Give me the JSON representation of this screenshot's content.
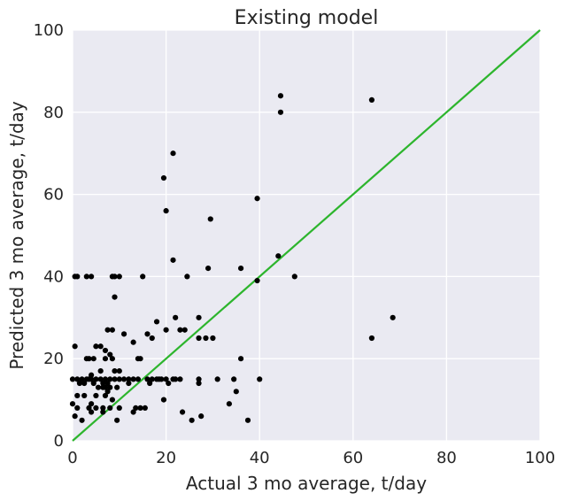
{
  "chart_data": {
    "type": "scatter",
    "title": "Existing model",
    "xlabel": "Actual 3 mo average, t/day",
    "ylabel": "Predicted 3 mo average, t/day",
    "xlim": [
      0,
      100
    ],
    "ylim": [
      0,
      100
    ],
    "xticks": [
      "0",
      "20",
      "40",
      "60",
      "80",
      "100"
    ],
    "yticks": [
      "0",
      "20",
      "40",
      "60",
      "80",
      "100"
    ],
    "grid": true,
    "background_color": "#eaeaf2",
    "grid_color": "#ffffff",
    "point_color": "#000000",
    "reference_line": {
      "x": [
        0,
        100
      ],
      "y": [
        0,
        100
      ],
      "color": "#2db52d"
    },
    "points": [
      [
        44.5,
        84
      ],
      [
        44.5,
        80
      ],
      [
        64,
        83
      ],
      [
        21.5,
        70
      ],
      [
        19.5,
        64
      ],
      [
        20,
        56
      ],
      [
        39.5,
        59
      ],
      [
        29.5,
        54
      ],
      [
        21.5,
        44
      ],
      [
        44,
        45
      ],
      [
        36,
        42
      ],
      [
        29,
        42
      ],
      [
        24.5,
        40
      ],
      [
        47.5,
        40
      ],
      [
        39.5,
        39
      ],
      [
        15,
        40
      ],
      [
        10,
        40
      ],
      [
        8.5,
        40
      ],
      [
        9,
        40
      ],
      [
        0.5,
        40
      ],
      [
        1,
        40
      ],
      [
        3,
        40
      ],
      [
        4,
        40
      ],
      [
        9,
        35
      ],
      [
        68.5,
        30
      ],
      [
        64,
        25
      ],
      [
        27,
        30
      ],
      [
        22,
        30
      ],
      [
        18,
        29
      ],
      [
        20,
        27
      ],
      [
        23,
        27
      ],
      [
        24,
        27
      ],
      [
        7.5,
        27
      ],
      [
        8.5,
        27
      ],
      [
        13,
        24
      ],
      [
        11,
        26
      ],
      [
        16,
        26
      ],
      [
        17,
        25
      ],
      [
        27,
        25
      ],
      [
        28.5,
        25
      ],
      [
        30,
        25
      ],
      [
        0.5,
        23
      ],
      [
        5,
        23
      ],
      [
        6,
        23
      ],
      [
        7,
        22
      ],
      [
        8,
        21
      ],
      [
        3,
        20
      ],
      [
        3.5,
        20
      ],
      [
        4.5,
        20
      ],
      [
        7,
        20
      ],
      [
        8.5,
        20
      ],
      [
        14,
        20
      ],
      [
        14.5,
        20
      ],
      [
        36,
        20
      ],
      [
        9,
        17
      ],
      [
        10,
        17
      ],
      [
        6,
        17
      ],
      [
        4,
        16
      ],
      [
        0,
        15
      ],
      [
        1,
        15
      ],
      [
        2,
        15
      ],
      [
        3,
        15
      ],
      [
        3.5,
        15
      ],
      [
        4,
        15
      ],
      [
        5,
        15
      ],
      [
        6,
        15
      ],
      [
        7,
        15
      ],
      [
        8,
        15
      ],
      [
        9,
        15
      ],
      [
        10,
        15
      ],
      [
        11,
        15
      ],
      [
        12,
        15
      ],
      [
        13,
        15
      ],
      [
        14,
        15
      ],
      [
        16,
        15
      ],
      [
        17,
        15
      ],
      [
        18,
        15
      ],
      [
        18.5,
        15
      ],
      [
        19,
        15
      ],
      [
        20,
        15
      ],
      [
        21.5,
        15
      ],
      [
        22,
        15
      ],
      [
        23,
        15
      ],
      [
        27,
        15
      ],
      [
        31,
        15
      ],
      [
        34.5,
        15
      ],
      [
        40,
        15
      ],
      [
        1.5,
        14
      ],
      [
        2.5,
        14
      ],
      [
        4.5,
        14
      ],
      [
        6.5,
        14
      ],
      [
        7.5,
        14
      ],
      [
        12,
        14
      ],
      [
        16.5,
        14
      ],
      [
        20.5,
        14
      ],
      [
        27,
        14
      ],
      [
        5.5,
        13
      ],
      [
        6.5,
        13
      ],
      [
        7,
        13
      ],
      [
        8,
        13
      ],
      [
        9.5,
        13
      ],
      [
        35,
        12
      ],
      [
        7.5,
        12
      ],
      [
        1,
        11
      ],
      [
        2.5,
        11
      ],
      [
        5,
        11
      ],
      [
        7,
        11
      ],
      [
        19.5,
        10
      ],
      [
        8.5,
        10
      ],
      [
        4,
        9
      ],
      [
        0,
        9
      ],
      [
        33.5,
        9
      ],
      [
        5,
        8
      ],
      [
        1,
        8
      ],
      [
        3.5,
        8
      ],
      [
        6.5,
        8
      ],
      [
        8,
        8
      ],
      [
        10,
        8
      ],
      [
        13.5,
        8
      ],
      [
        14.5,
        8
      ],
      [
        15.5,
        8
      ],
      [
        23.5,
        7
      ],
      [
        13,
        7
      ],
      [
        6.5,
        7
      ],
      [
        0.5,
        6
      ],
      [
        27.5,
        6
      ],
      [
        2,
        5
      ],
      [
        9.5,
        5
      ],
      [
        25.5,
        5
      ],
      [
        37.5,
        5
      ],
      [
        4,
        7
      ]
    ]
  }
}
